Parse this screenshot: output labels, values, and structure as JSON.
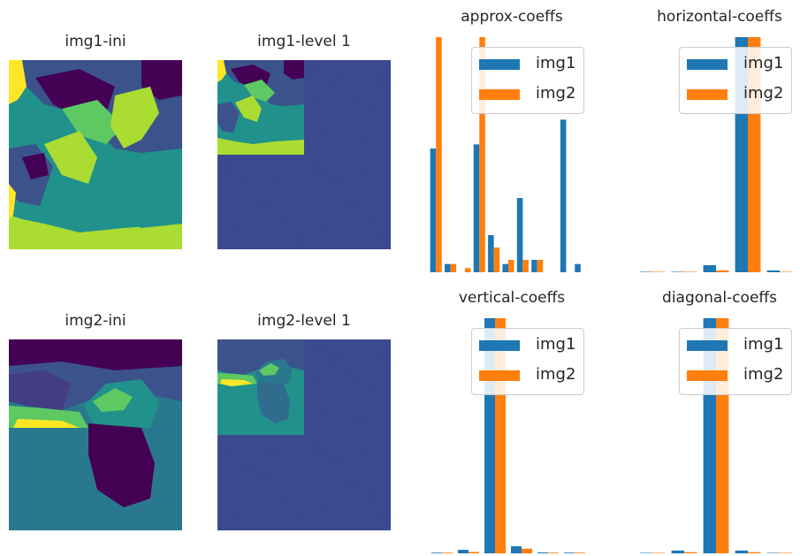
{
  "colors": {
    "img1": "#1f77b4",
    "img2": "#ff7f0e",
    "viridis_dark": "#440154",
    "viridis_blue": "#3b528b",
    "viridis_teal": "#21918c",
    "viridis_green": "#5ec962",
    "viridis_lime": "#aadc32",
    "viridis_yellow": "#fde725"
  },
  "images": {
    "img1_ini": {
      "title": "img1-ini"
    },
    "img1_level1": {
      "title": "img1-level 1"
    },
    "img2_ini": {
      "title": "img2-ini"
    },
    "img2_level1": {
      "title": "img2-level 1"
    }
  },
  "chart_data": [
    {
      "type": "bar",
      "title": "approx-coeffs",
      "legend": [
        "img1",
        "img2"
      ],
      "legend_position": "upper-right",
      "axes": "off",
      "series": [
        {
          "name": "img1",
          "values": [
            30,
            2,
            0,
            31,
            9,
            2,
            18,
            3,
            0,
            37,
            2
          ]
        },
        {
          "name": "img2",
          "values": [
            57,
            2,
            1,
            57,
            6,
            3,
            3,
            3,
            0,
            0,
            0
          ]
        }
      ]
    },
    {
      "type": "bar",
      "title": "horizontal-coeffs",
      "legend": [
        "img1",
        "img2"
      ],
      "legend_position": "upper-right",
      "axes": "off",
      "series": [
        {
          "name": "img1",
          "values": [
            0.2,
            0.2,
            3,
            100,
            0.8
          ]
        },
        {
          "name": "img2",
          "values": [
            0.2,
            0.2,
            0.8,
            100,
            0.2
          ]
        }
      ]
    },
    {
      "type": "bar",
      "title": "vertical-coeffs",
      "legend": [
        "img1",
        "img2"
      ],
      "legend_position": "upper-right",
      "axes": "off",
      "series": [
        {
          "name": "img1",
          "values": [
            0.3,
            1.5,
            100,
            3,
            0.4,
            0.3
          ]
        },
        {
          "name": "img2",
          "values": [
            0.3,
            0.6,
            100,
            2,
            0.3,
            0.3
          ]
        }
      ]
    },
    {
      "type": "bar",
      "title": "diagonal-coeffs",
      "legend": [
        "img1",
        "img2"
      ],
      "legend_position": "upper-right",
      "axes": "off",
      "series": [
        {
          "name": "img1",
          "values": [
            0.2,
            1.2,
            100,
            1.2,
            0.2
          ]
        },
        {
          "name": "img2",
          "values": [
            0.2,
            0.5,
            100,
            0.5,
            0.2
          ]
        }
      ]
    }
  ]
}
